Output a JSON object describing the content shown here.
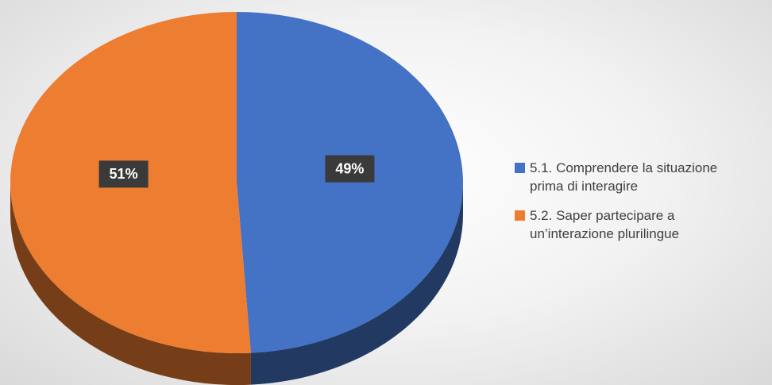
{
  "chart_data": {
    "type": "pie",
    "series": [
      {
        "name": "5.1. Comprendere la situazione prima di interagire",
        "color": "#4472c4",
        "values": [
          49
        ],
        "value_labels": [
          "49%"
        ]
      },
      {
        "name": "5.2. Saper partecipare a un’interazione plurilingue",
        "color": "#ed7d31",
        "values": [
          51
        ],
        "value_labels": [
          "51%"
        ]
      }
    ],
    "legend": "right"
  }
}
